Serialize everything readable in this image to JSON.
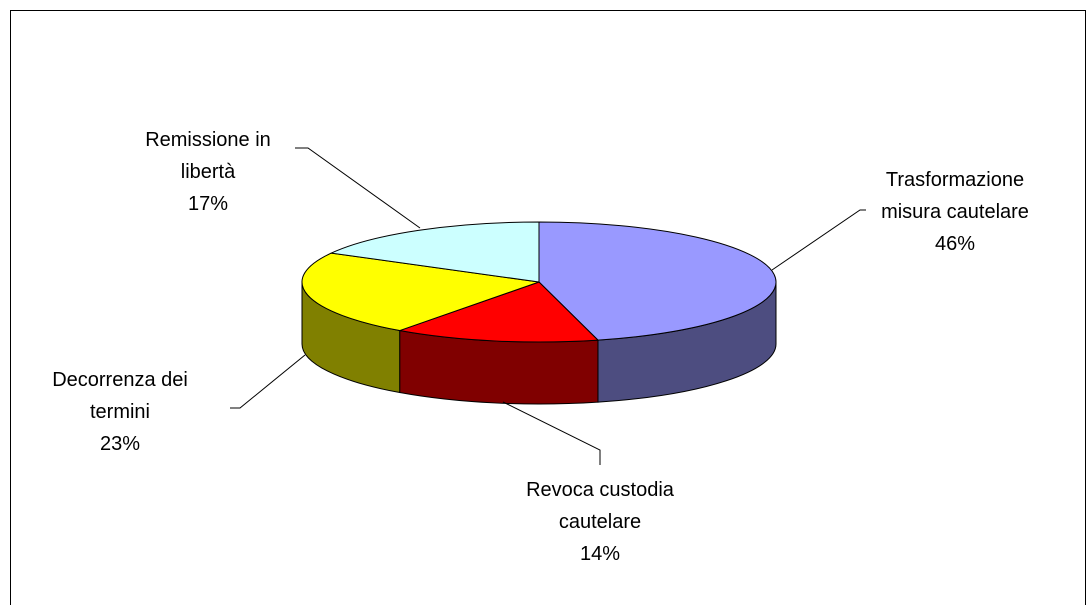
{
  "chart_data": {
    "type": "pie3d",
    "categories": [
      "Trasformazione misura cautelare",
      "Revoca custodia cautelare",
      "Decorrenza dei termini",
      "Remissione in libertà"
    ],
    "values": [
      46,
      14,
      23,
      17
    ],
    "value_labels": [
      "46%",
      "14%",
      "23%",
      "17%"
    ],
    "colors": [
      "#9999ff",
      "#ff0000",
      "#ffff00",
      "#ccffff"
    ],
    "side_colors": [
      "#4d4d80",
      "#800000",
      "#808000",
      "#668080"
    ]
  }
}
